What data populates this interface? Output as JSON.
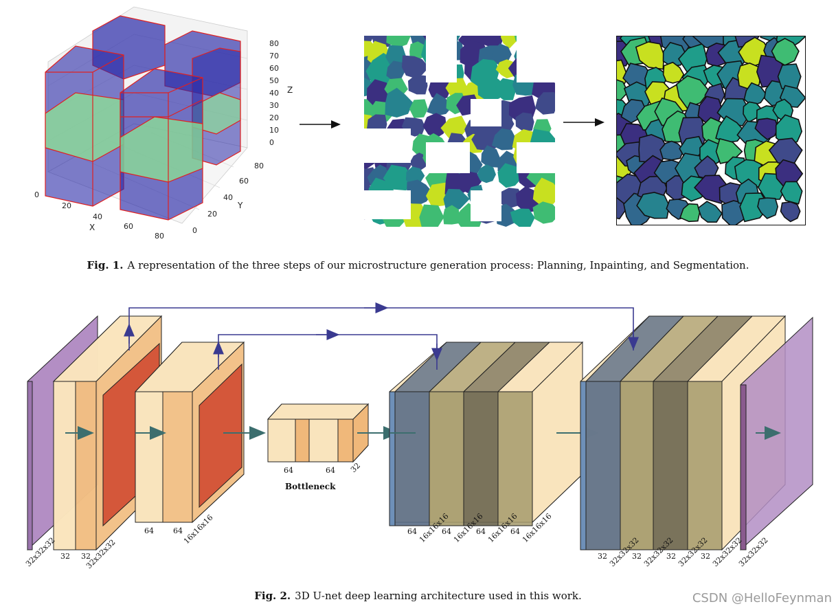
{
  "fig1": {
    "plot3d": {
      "z_ticks": [
        "80",
        "70",
        "60",
        "50",
        "40",
        "30",
        "20",
        "10",
        "0"
      ],
      "z_label": "Z",
      "x_ticks": [
        "0",
        "20",
        "40",
        "60",
        "80"
      ],
      "x_label": "X",
      "y_ticks": [
        "80",
        "60",
        "40",
        "20",
        "0"
      ],
      "y_label": "Y"
    },
    "caption_label": "Fig. 1.",
    "caption_text": "A representation of the three steps of our microstructure generation process: Planning, Inpainting, and Segmentation."
  },
  "fig2": {
    "labels": {
      "in_dims": "32x32x32",
      "enc1_a": "32",
      "enc1_b": "32",
      "enc1_dims": "32x32x32",
      "enc2_a": "64",
      "enc2_b": "64",
      "enc2_dims": "16x16x16",
      "bott_a": "64",
      "bott_b": "64",
      "bott_c": "32",
      "bottleneck": "Bottleneck",
      "dec2_1": "64",
      "dec2_d1": "16x16x16",
      "dec2_2": "64",
      "dec2_d2": "16x16x16",
      "dec2_3": "64",
      "dec2_d3": "16x16x16",
      "dec2_4": "64",
      "dec2_d4": "16x16x16",
      "dec1_1": "32",
      "dec1_d1": "32x32x32",
      "dec1_2": "32",
      "dec1_d2": "32x32x32",
      "dec1_3": "32",
      "dec1_d3": "32x32x32",
      "dec1_4": "32",
      "dec1_d4": "32x32x32",
      "out_dims": "32x32x32"
    },
    "caption_label": "Fig. 2.",
    "caption_text": "3D U-net deep learning architecture used in this work."
  },
  "watermark": "CSDN @HelloFeynman",
  "colors": {
    "block_blue": "#2a2aa8",
    "edge_red": "#e02020",
    "green_band": "#90ee90",
    "viridis": [
      "#3b2f80",
      "#3f4a8a",
      "#31688e",
      "#26838f",
      "#1f9d8a",
      "#3fbc73",
      "#84d44b",
      "#c8e020"
    ],
    "purple": "#b38ec4",
    "peach": "#f9e4bd",
    "orange": "#f0b87a",
    "red_orange": "#d4573a",
    "slate": "#5a6d86",
    "olive": "#a49a6c",
    "arrow_teal": "#3c6e6e",
    "skip_blue": "#3a3a90"
  }
}
